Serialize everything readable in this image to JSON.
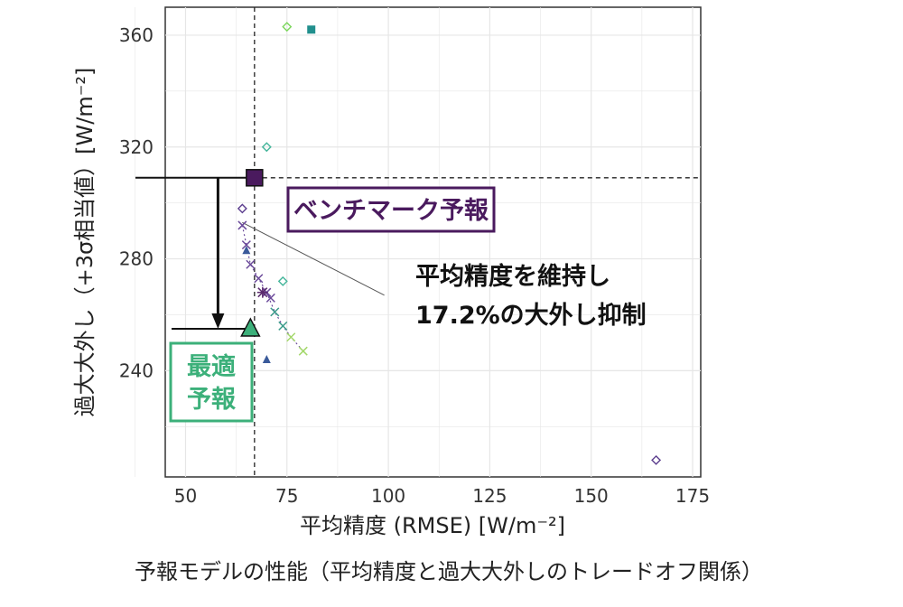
{
  "chart_data": {
    "type": "scatter",
    "title": "",
    "xlabel": "平均精度 (RMSE) [W/m⁻²]",
    "ylabel": "過大大外し（+3σ相当値）[W/m⁻²]",
    "xlim": [
      45,
      177
    ],
    "ylim": [
      202,
      370
    ],
    "xticks": [
      50,
      75,
      100,
      125,
      150,
      175
    ],
    "yticks": [
      240,
      280,
      320,
      360
    ],
    "grid": true,
    "reference_lines": {
      "x": 67,
      "y": 309
    },
    "series": [
      {
        "marker": "diamond",
        "color": "#7bd65c",
        "values": [
          [
            75,
            363
          ]
        ]
      },
      {
        "marker": "diamond",
        "color": "#44b59a",
        "values": [
          [
            70,
            320
          ],
          [
            74,
            272
          ]
        ]
      },
      {
        "marker": "diamond",
        "color": "#5c3e8e",
        "values": [
          [
            64,
            298
          ],
          [
            166,
            208
          ]
        ]
      },
      {
        "marker": "square",
        "color": "#218f8d",
        "values": [
          [
            81,
            362
          ]
        ]
      },
      {
        "marker": "x",
        "color": "#6b4a9a",
        "values": [
          [
            64,
            292
          ],
          [
            65,
            285
          ],
          [
            66,
            278
          ],
          [
            68,
            273
          ],
          [
            70,
            268
          ],
          [
            71,
            266
          ]
        ]
      },
      {
        "marker": "x",
        "color": "#3a9b8a",
        "values": [
          [
            72,
            261
          ],
          [
            74,
            256
          ]
        ]
      },
      {
        "marker": "x",
        "color": "#a3d86a",
        "values": [
          [
            76,
            252
          ],
          [
            79,
            247
          ]
        ]
      },
      {
        "marker": "asterisk",
        "color": "#5b2a6e",
        "values": [
          [
            69,
            268
          ]
        ]
      },
      {
        "marker": "triangle",
        "color": "#3a5a9a",
        "values": [
          [
            65,
            283
          ],
          [
            70,
            244
          ]
        ]
      }
    ],
    "benchmark": {
      "label": "ベンチマーク予報",
      "x": 67,
      "y": 309,
      "color": "#4a1a5e"
    },
    "optimal": {
      "label_line1": "最適",
      "label_line2": "予報",
      "x": 66,
      "y": 255,
      "color": "#3cb07a"
    },
    "trend_annotation": {
      "line1": "平均精度を維持し",
      "line2": "17.2%の大外し抑制"
    }
  },
  "caption": "予報モデルの性能（平均精度と過大大外しのトレードオフ関係）",
  "colors": {
    "grid": "#e6e6e6",
    "frame": "#333333",
    "text": "#111111"
  }
}
